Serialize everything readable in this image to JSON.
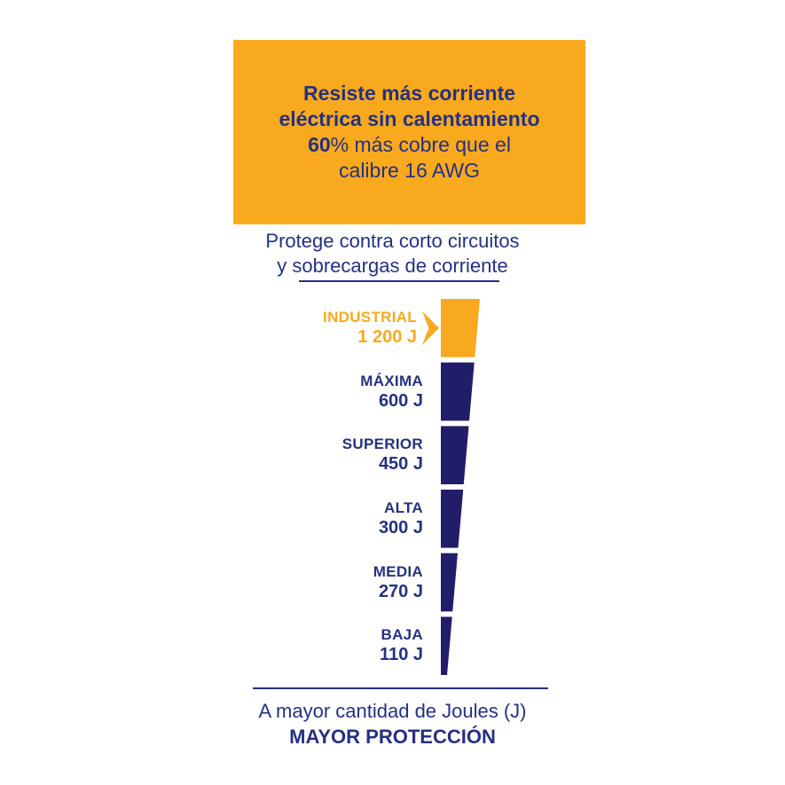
{
  "header": {
    "line1": "Resiste más corriente",
    "line2": "eléctrica sin calentamiento",
    "line3_bold": "60",
    "line3_rest": "% más cobre que el",
    "line4": "calibre 16 AWG"
  },
  "subtitle": {
    "line1": "Protege contra corto circuitos",
    "line2": "y sobrecargas de corriente"
  },
  "footer": {
    "line1": "A mayor cantidad de Joules (J)",
    "line2": "MAYOR PROTECCIÓN"
  },
  "colors": {
    "orange": "#F8A91E",
    "navy": "#221D69",
    "text_blue": "#243181"
  },
  "chart_data": {
    "type": "funnel",
    "orientation": "vertical-taper",
    "categories": [
      "INDUSTRIAL",
      "MÁXIMA",
      "SUPERIOR",
      "ALTA",
      "MEDIA",
      "BAJA"
    ],
    "values": [
      1200,
      600,
      450,
      300,
      270,
      110
    ],
    "value_labels": [
      "1 200 J",
      "600 J",
      "450 J",
      "300 J",
      "270 J",
      "110 J"
    ],
    "unit": "J",
    "highlight_index": 0,
    "segment_colors": [
      "#F8A91E",
      "#221D69",
      "#221D69",
      "#221D69",
      "#221D69",
      "#221D69"
    ],
    "legend": false,
    "grid": false
  }
}
